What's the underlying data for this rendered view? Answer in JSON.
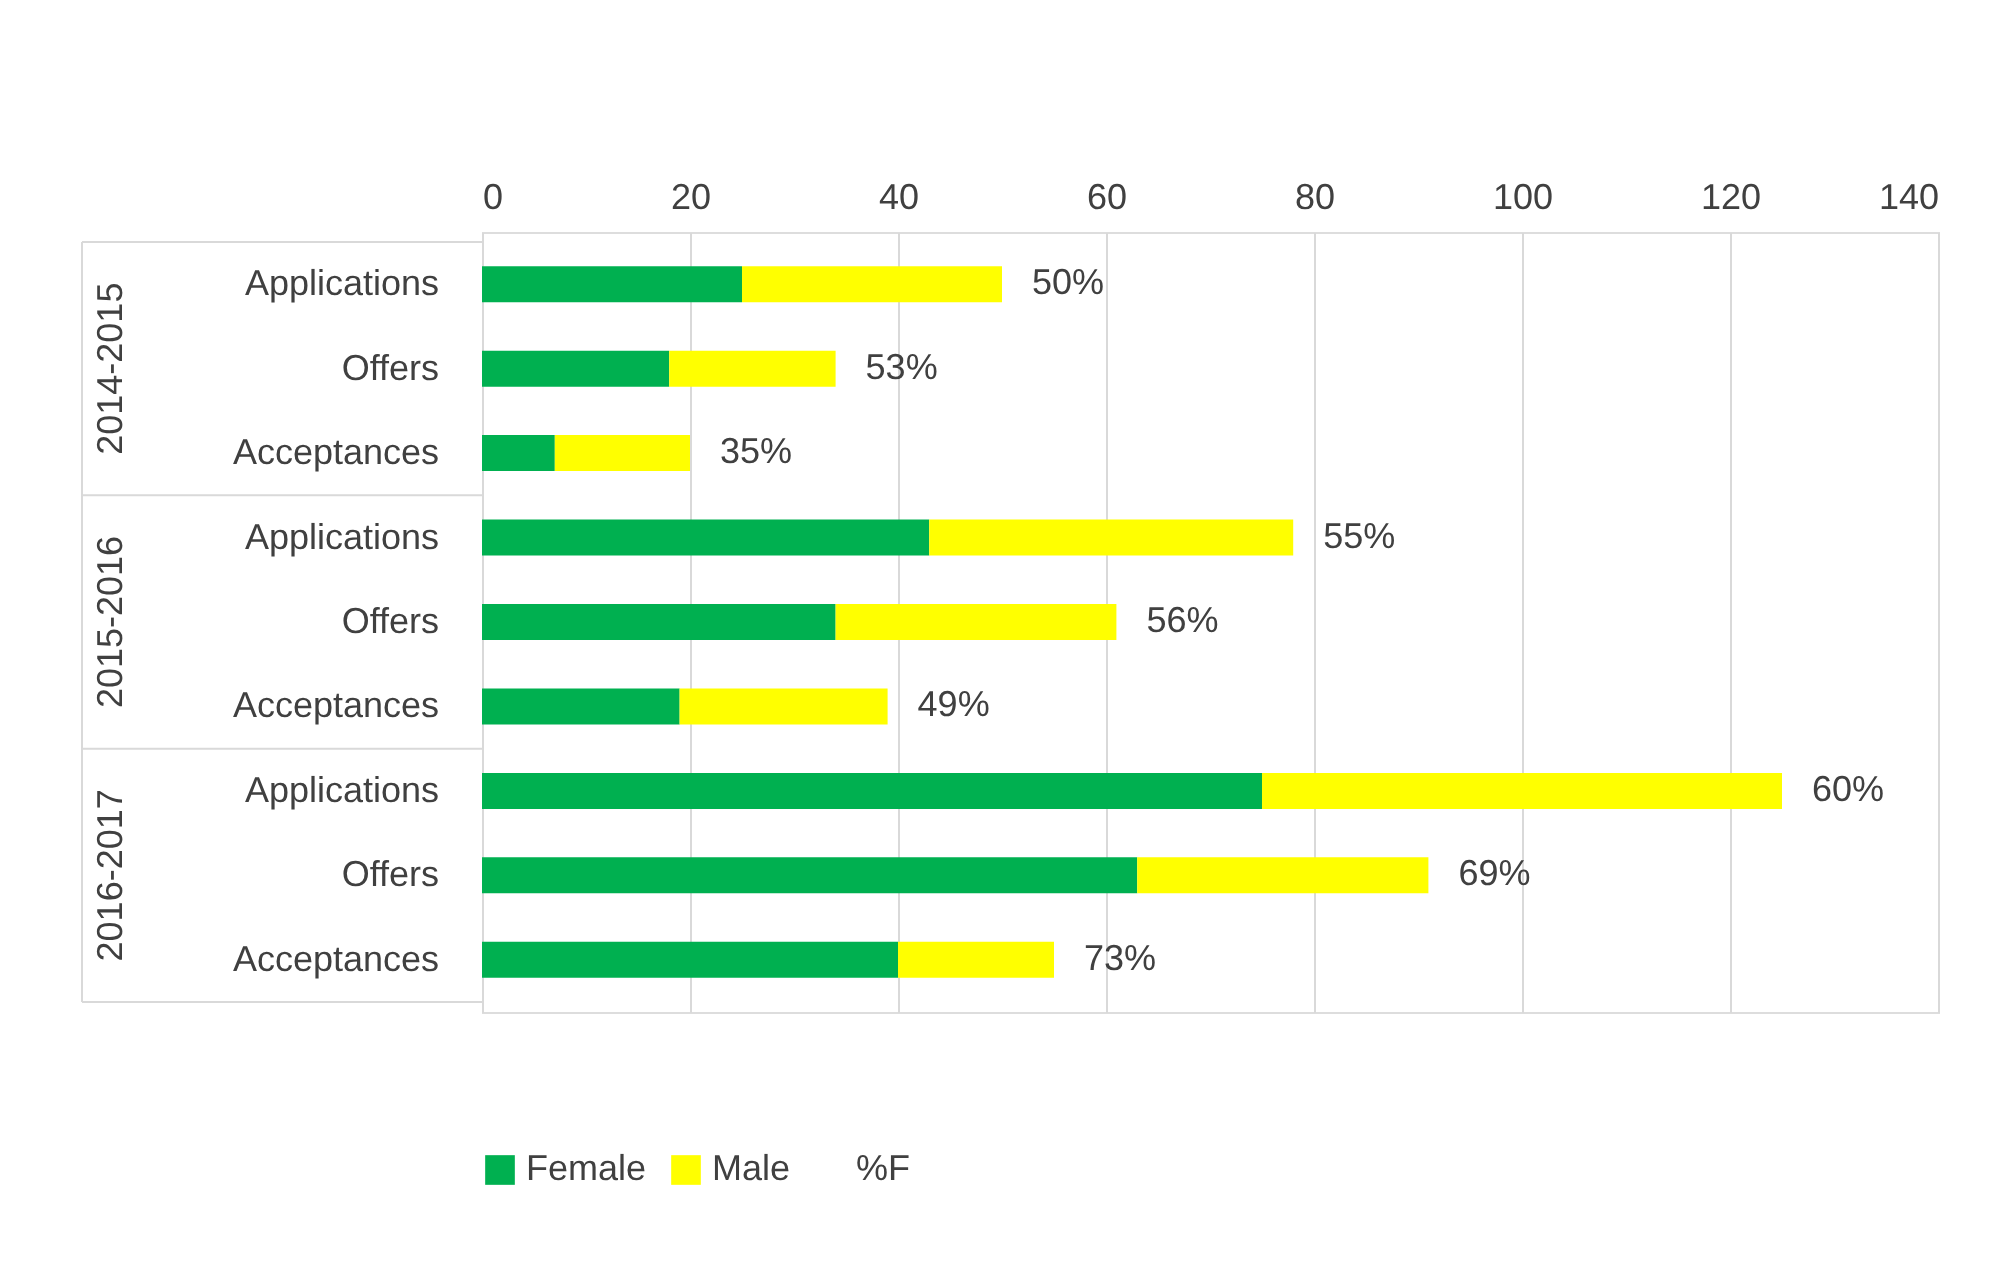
{
  "chart_data": {
    "type": "bar",
    "orientation": "horizontal",
    "stacked": true,
    "categories": [
      "Applications",
      "Offers",
      "Acceptances",
      "Applications",
      "Offers",
      "Acceptances",
      "Applications",
      "Offers",
      "Acceptances"
    ],
    "series": [
      {
        "name": "Female",
        "color": "#00b050",
        "values": [
          25,
          18,
          7,
          43,
          34,
          19,
          75,
          63,
          40
        ]
      },
      {
        "name": "Male",
        "color": "#ffff00",
        "values": [
          25,
          16,
          13,
          35,
          27,
          20,
          50,
          28,
          15
        ]
      },
      {
        "name": "%F",
        "values": [
          null,
          null,
          null,
          null,
          null,
          null,
          null,
          null,
          null
        ],
        "value_labels": [
          "50%",
          "53%",
          "35%",
          "55%",
          "56%",
          "49%",
          "60%",
          "69%",
          "73%"
        ]
      }
    ],
    "annotations": [
      "2014-2015",
      "2015-2016",
      "2016-2017"
    ],
    "xlim": [
      0,
      140
    ],
    "xticks": [
      0,
      20,
      40,
      60,
      80,
      100,
      120,
      140
    ],
    "grid": "x",
    "legend": "bottom"
  }
}
